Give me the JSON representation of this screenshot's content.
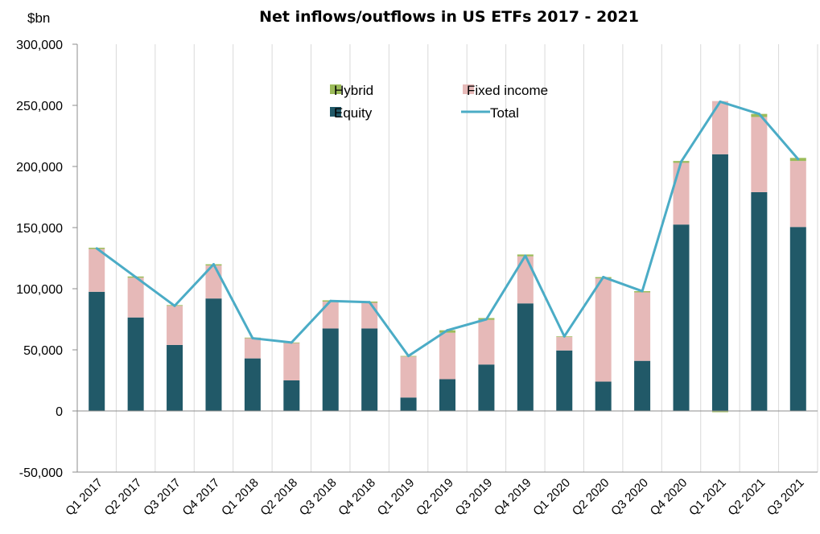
{
  "chart_data": {
    "type": "bar",
    "stacked": true,
    "title": "Net inflows/outflows in US ETFs 2017 - 2021",
    "ylabel": "$bn",
    "ylim": [
      -50000,
      300000
    ],
    "yticks": [
      -50000,
      0,
      50000,
      100000,
      150000,
      200000,
      250000,
      300000
    ],
    "ytick_labels": [
      "-50,000",
      "0",
      "50,000",
      "100,000",
      "150,000",
      "200,000",
      "250,000",
      "300,000"
    ],
    "grid": {
      "vertical": true,
      "horizontal": false
    },
    "legend_position": "top-center",
    "categories": [
      "Q1 2017",
      "Q2 2017",
      "Q3 2017",
      "Q4 2017",
      "Q1 2018",
      "Q2 2018",
      "Q3 2018",
      "Q4 2018",
      "Q1 2019",
      "Q2 2019",
      "Q3 2019",
      "Q4 2019",
      "Q1 2020",
      "Q2 2020",
      "Q3 2020",
      "Q4 2020",
      "Q1 2021",
      "Q2 2021",
      "Q3 2021"
    ],
    "series": [
      {
        "name": "Equity",
        "kind": "bar",
        "color": "#215968",
        "values": [
          97500,
          76500,
          54000,
          92000,
          43000,
          25000,
          67500,
          67500,
          11000,
          26000,
          38000,
          88000,
          49500,
          24000,
          41000,
          152500,
          210000,
          179000,
          150500
        ]
      },
      {
        "name": "Fixed income",
        "kind": "bar",
        "color": "#E6B9B8",
        "values": [
          35000,
          32500,
          32000,
          27000,
          16500,
          30500,
          22000,
          21000,
          33500,
          38000,
          36500,
          38500,
          11000,
          84500,
          56000,
          50500,
          43500,
          61500,
          54000
        ]
      },
      {
        "name": "Hybrid",
        "kind": "bar",
        "color": "#9BBB59",
        "values": [
          1000,
          1000,
          600,
          1000,
          500,
          500,
          1000,
          1000,
          500,
          2000,
          1500,
          1500,
          500,
          1000,
          1000,
          1500,
          -1000,
          2500,
          2500
        ]
      },
      {
        "name": "Total",
        "kind": "line",
        "color": "#4BACC6",
        "values": [
          133000,
          109500,
          86000,
          120000,
          59500,
          56000,
          90000,
          89000,
          45000,
          66000,
          75000,
          127000,
          61000,
          109500,
          98000,
          204000,
          253000,
          243000,
          206000
        ]
      }
    ],
    "legend_order": [
      "Hybrid",
      "Fixed income",
      "Equity",
      "Total"
    ]
  }
}
